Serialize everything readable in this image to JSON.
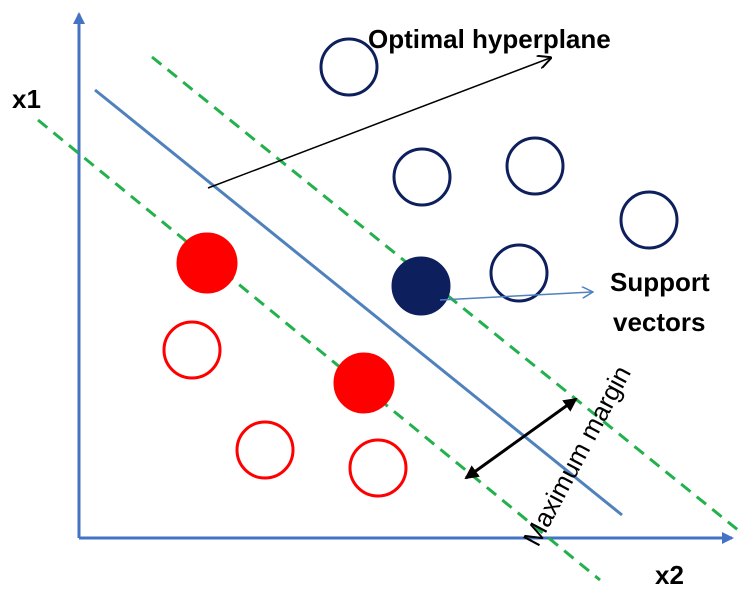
{
  "labels": {
    "y_axis": "x1",
    "x_axis": "x2",
    "hyperplane": "Optimal hyperplane",
    "support_line1": "Support",
    "support_line2": "vectors",
    "margin": "Maximum margin"
  },
  "colors": {
    "axis": "#4472c4",
    "hyperplane": "#4f81bd",
    "margin_lines": "#22b14c",
    "class_positive": "#0d1f5c",
    "class_negative": "#ff0000",
    "annotation_arrow": "#000000",
    "support_arrow": "#4f81bd"
  }
}
